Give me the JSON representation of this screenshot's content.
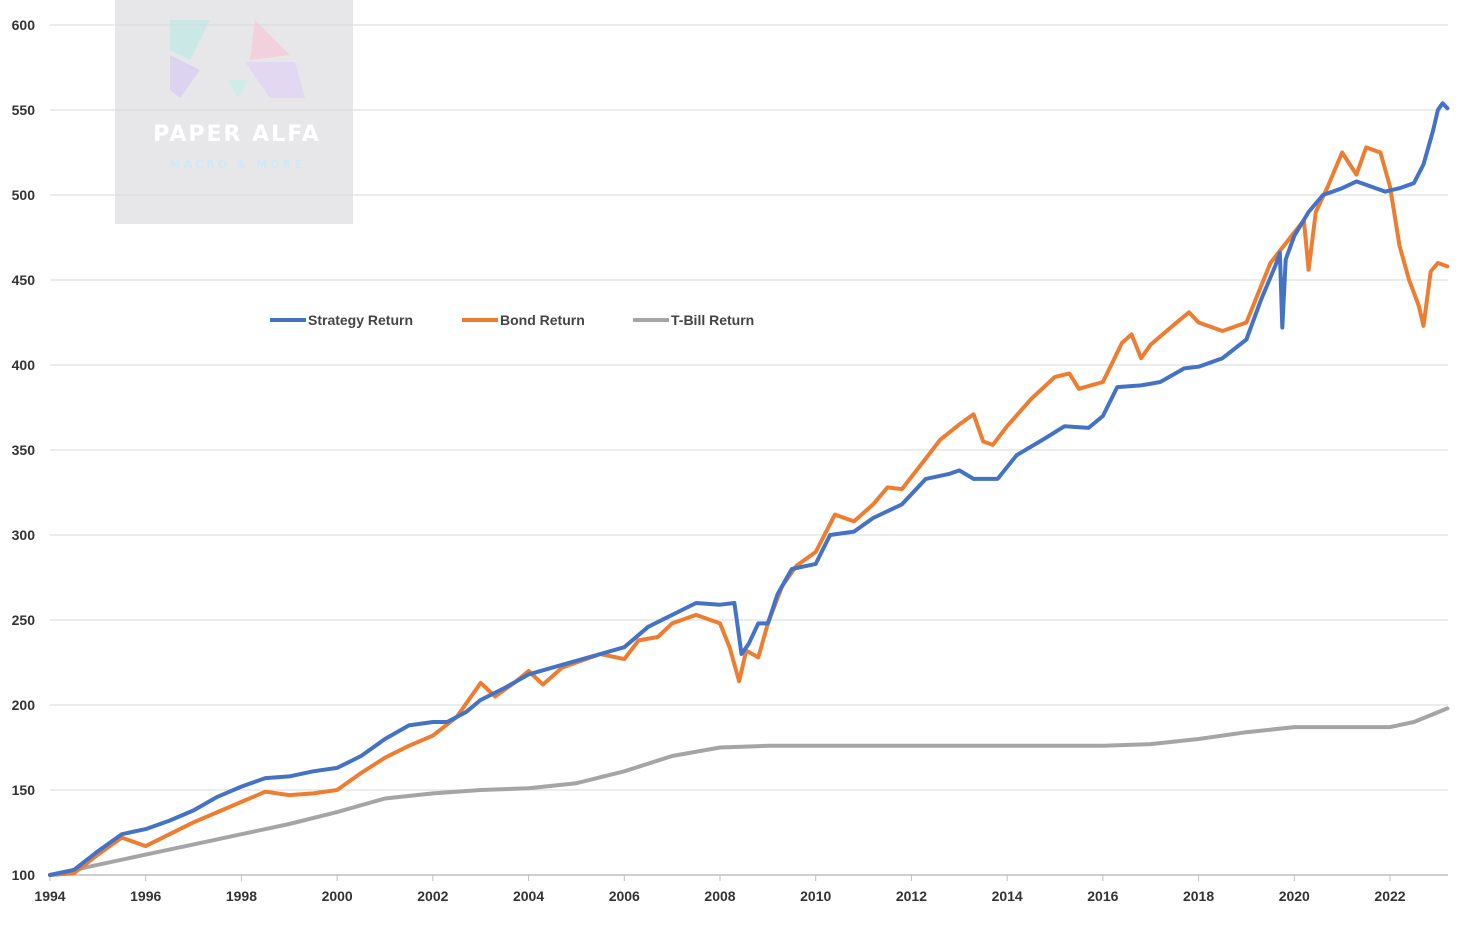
{
  "watermark": {
    "brand": "PAPER ALFA",
    "tagline": "MACRO & MORE"
  },
  "colors": {
    "strategy": "#4472C4",
    "bond": "#ED7D31",
    "tbill": "#A5A5A5",
    "grid": "#D9D9D9",
    "watermark_bg": "#E7E7E9"
  },
  "chart_data": {
    "type": "line",
    "title": "",
    "xlabel": "",
    "ylabel": "",
    "xlim": [
      1994,
      2023.2
    ],
    "ylim": [
      100,
      600
    ],
    "x_ticks": [
      1994,
      1996,
      1998,
      2000,
      2002,
      2004,
      2006,
      2008,
      2010,
      2012,
      2014,
      2016,
      2018,
      2020,
      2022
    ],
    "y_ticks": [
      100,
      150,
      200,
      250,
      300,
      350,
      400,
      450,
      500,
      550,
      600
    ],
    "grid": "horizontal",
    "legend_position": "upper-left",
    "series": [
      {
        "name": "Strategy Return",
        "color_key": "strategy",
        "points": [
          [
            1994.0,
            100
          ],
          [
            1994.5,
            103
          ],
          [
            1995.0,
            114
          ],
          [
            1995.5,
            124
          ],
          [
            1996.0,
            127
          ],
          [
            1996.5,
            132
          ],
          [
            1997.0,
            138
          ],
          [
            1997.5,
            146
          ],
          [
            1998.0,
            152
          ],
          [
            1998.5,
            157
          ],
          [
            1999.0,
            158
          ],
          [
            1999.5,
            161
          ],
          [
            2000.0,
            163
          ],
          [
            2000.5,
            170
          ],
          [
            2001.0,
            180
          ],
          [
            2001.5,
            188
          ],
          [
            2002.0,
            190
          ],
          [
            2002.3,
            190
          ],
          [
            2002.7,
            196
          ],
          [
            2003.0,
            203
          ],
          [
            2003.5,
            210
          ],
          [
            2004.0,
            218
          ],
          [
            2004.5,
            222
          ],
          [
            2005.0,
            226
          ],
          [
            2005.5,
            230
          ],
          [
            2006.0,
            234
          ],
          [
            2006.5,
            246
          ],
          [
            2007.0,
            253
          ],
          [
            2007.5,
            260
          ],
          [
            2008.0,
            259
          ],
          [
            2008.3,
            260
          ],
          [
            2008.45,
            230
          ],
          [
            2008.6,
            236
          ],
          [
            2008.8,
            248
          ],
          [
            2009.0,
            248
          ],
          [
            2009.2,
            265
          ],
          [
            2009.5,
            280
          ],
          [
            2010.0,
            283
          ],
          [
            2010.3,
            300
          ],
          [
            2010.8,
            302
          ],
          [
            2011.2,
            310
          ],
          [
            2011.8,
            318
          ],
          [
            2012.3,
            333
          ],
          [
            2012.8,
            336
          ],
          [
            2013.0,
            338
          ],
          [
            2013.3,
            333
          ],
          [
            2013.8,
            333
          ],
          [
            2014.2,
            347
          ],
          [
            2014.8,
            357
          ],
          [
            2015.2,
            364
          ],
          [
            2015.7,
            363
          ],
          [
            2016.0,
            370
          ],
          [
            2016.3,
            387
          ],
          [
            2016.8,
            388
          ],
          [
            2017.2,
            390
          ],
          [
            2017.7,
            398
          ],
          [
            2018.0,
            399
          ],
          [
            2018.5,
            404
          ],
          [
            2019.0,
            415
          ],
          [
            2019.3,
            438
          ],
          [
            2019.6,
            458
          ],
          [
            2019.7,
            466
          ],
          [
            2019.75,
            422
          ],
          [
            2019.82,
            462
          ],
          [
            2020.0,
            476
          ],
          [
            2020.3,
            490
          ],
          [
            2020.6,
            500
          ],
          [
            2021.0,
            504
          ],
          [
            2021.3,
            508
          ],
          [
            2021.6,
            505
          ],
          [
            2021.9,
            502
          ],
          [
            2022.2,
            504
          ],
          [
            2022.5,
            507
          ],
          [
            2022.7,
            518
          ],
          [
            2022.9,
            538
          ],
          [
            2023.0,
            550
          ],
          [
            2023.1,
            554
          ],
          [
            2023.2,
            551
          ]
        ]
      },
      {
        "name": "Bond Return",
        "color_key": "bond",
        "points": [
          [
            1994.0,
            100
          ],
          [
            1994.5,
            101
          ],
          [
            1995.0,
            112
          ],
          [
            1995.5,
            122
          ],
          [
            1996.0,
            117
          ],
          [
            1996.5,
            124
          ],
          [
            1997.0,
            131
          ],
          [
            1997.5,
            137
          ],
          [
            1998.0,
            143
          ],
          [
            1998.5,
            149
          ],
          [
            1999.0,
            147
          ],
          [
            1999.5,
            148
          ],
          [
            2000.0,
            150
          ],
          [
            2000.5,
            160
          ],
          [
            2001.0,
            169
          ],
          [
            2001.5,
            176
          ],
          [
            2002.0,
            182
          ],
          [
            2002.5,
            193
          ],
          [
            2003.0,
            213
          ],
          [
            2003.3,
            205
          ],
          [
            2003.7,
            213
          ],
          [
            2004.0,
            220
          ],
          [
            2004.3,
            212
          ],
          [
            2004.7,
            222
          ],
          [
            2005.0,
            225
          ],
          [
            2005.5,
            230
          ],
          [
            2006.0,
            227
          ],
          [
            2006.3,
            238
          ],
          [
            2006.7,
            240
          ],
          [
            2007.0,
            248
          ],
          [
            2007.5,
            253
          ],
          [
            2008.0,
            248
          ],
          [
            2008.2,
            234
          ],
          [
            2008.4,
            214
          ],
          [
            2008.55,
            232
          ],
          [
            2008.8,
            228
          ],
          [
            2009.0,
            248
          ],
          [
            2009.3,
            270
          ],
          [
            2009.6,
            282
          ],
          [
            2010.0,
            290
          ],
          [
            2010.4,
            312
          ],
          [
            2010.8,
            308
          ],
          [
            2011.2,
            318
          ],
          [
            2011.5,
            328
          ],
          [
            2011.8,
            327
          ],
          [
            2012.3,
            345
          ],
          [
            2012.6,
            356
          ],
          [
            2013.0,
            365
          ],
          [
            2013.3,
            371
          ],
          [
            2013.5,
            355
          ],
          [
            2013.7,
            353
          ],
          [
            2014.0,
            364
          ],
          [
            2014.5,
            380
          ],
          [
            2015.0,
            393
          ],
          [
            2015.3,
            395
          ],
          [
            2015.5,
            386
          ],
          [
            2016.0,
            390
          ],
          [
            2016.4,
            413
          ],
          [
            2016.6,
            418
          ],
          [
            2016.8,
            404
          ],
          [
            2017.0,
            412
          ],
          [
            2017.5,
            424
          ],
          [
            2017.8,
            431
          ],
          [
            2018.0,
            425
          ],
          [
            2018.5,
            420
          ],
          [
            2019.0,
            425
          ],
          [
            2019.5,
            460
          ],
          [
            2020.0,
            478
          ],
          [
            2020.2,
            485
          ],
          [
            2020.3,
            456
          ],
          [
            2020.45,
            490
          ],
          [
            2020.7,
            505
          ],
          [
            2021.0,
            525
          ],
          [
            2021.3,
            512
          ],
          [
            2021.5,
            528
          ],
          [
            2021.8,
            525
          ],
          [
            2022.0,
            505
          ],
          [
            2022.2,
            470
          ],
          [
            2022.4,
            450
          ],
          [
            2022.6,
            435
          ],
          [
            2022.7,
            423
          ],
          [
            2022.85,
            455
          ],
          [
            2023.0,
            460
          ],
          [
            2023.2,
            458
          ]
        ]
      },
      {
        "name": "T-Bill Return",
        "color_key": "tbill",
        "points": [
          [
            1994.0,
            100
          ],
          [
            1995.0,
            106
          ],
          [
            1996.0,
            112
          ],
          [
            1997.0,
            118
          ],
          [
            1998.0,
            124
          ],
          [
            1999.0,
            130
          ],
          [
            2000.0,
            137
          ],
          [
            2001.0,
            145
          ],
          [
            2002.0,
            148
          ],
          [
            2003.0,
            150
          ],
          [
            2004.0,
            151
          ],
          [
            2005.0,
            154
          ],
          [
            2006.0,
            161
          ],
          [
            2007.0,
            170
          ],
          [
            2008.0,
            175
          ],
          [
            2009.0,
            176
          ],
          [
            2010.0,
            176
          ],
          [
            2011.0,
            176
          ],
          [
            2012.0,
            176
          ],
          [
            2013.0,
            176
          ],
          [
            2014.0,
            176
          ],
          [
            2015.0,
            176
          ],
          [
            2016.0,
            176
          ],
          [
            2017.0,
            177
          ],
          [
            2018.0,
            180
          ],
          [
            2019.0,
            184
          ],
          [
            2020.0,
            187
          ],
          [
            2021.0,
            187
          ],
          [
            2022.0,
            187
          ],
          [
            2022.5,
            190
          ],
          [
            2023.2,
            198
          ]
        ]
      }
    ]
  }
}
